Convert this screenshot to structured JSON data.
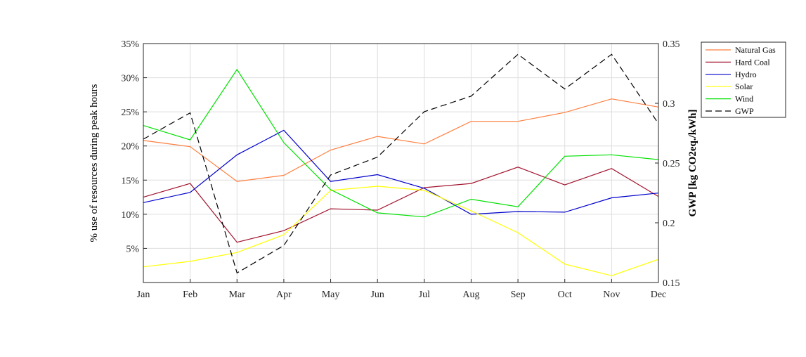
{
  "chart_data": {
    "type": "line",
    "categories": [
      "Jan",
      "Feb",
      "Mar",
      "Apr",
      "May",
      "Jun",
      "Jul",
      "Aug",
      "Sep",
      "Oct",
      "Nov",
      "Dec"
    ],
    "left_axis": {
      "label": "% use of resources during peak hours",
      "ylim": [
        0,
        35
      ],
      "ticks": [
        5,
        10,
        15,
        20,
        25,
        30,
        35
      ],
      "tick_labels": [
        "5%",
        "10%",
        "15%",
        "20%",
        "25%",
        "30%",
        "35%"
      ]
    },
    "right_axis": {
      "label": "GWP [kg CO2eq./kWh]",
      "ylim": [
        0.15,
        0.35
      ],
      "ticks": [
        0.15,
        0.2,
        0.25,
        0.3,
        0.35
      ],
      "tick_labels": [
        "0.15",
        "0.2",
        "0.25",
        "0.3",
        "0.35"
      ]
    },
    "grid": true,
    "legend_position": "top-right outside",
    "series": [
      {
        "name": "Natural Gas",
        "axis": "left",
        "color": "#ff7f3f",
        "dash": "solid",
        "values": [
          20.8,
          19.9,
          14.8,
          15.7,
          19.4,
          21.4,
          20.3,
          23.6,
          23.6,
          24.9,
          26.9,
          25.7
        ]
      },
      {
        "name": "Hard Coal",
        "axis": "left",
        "color": "#a2142f",
        "dash": "solid",
        "values": [
          12.5,
          14.5,
          5.9,
          7.6,
          10.8,
          10.6,
          13.9,
          14.5,
          16.9,
          14.3,
          16.7,
          12.6
        ]
      },
      {
        "name": "Hydro",
        "axis": "left",
        "color": "#0000cc",
        "dash": "solid",
        "values": [
          11.7,
          13.2,
          18.7,
          22.3,
          14.8,
          15.8,
          13.8,
          10.0,
          10.4,
          10.3,
          12.4,
          13.1
        ]
      },
      {
        "name": "Solar",
        "axis": "left",
        "color": "#ffff00",
        "dash": "solid",
        "values": [
          2.3,
          3.1,
          4.4,
          7.0,
          13.5,
          14.1,
          13.5,
          10.5,
          7.3,
          2.7,
          1.0,
          3.4
        ]
      },
      {
        "name": "Wind",
        "axis": "left",
        "color": "#00e000",
        "dash": "solid",
        "values": [
          23.0,
          20.9,
          31.2,
          20.5,
          13.6,
          10.2,
          9.6,
          12.2,
          11.1,
          18.5,
          18.7,
          18.0
        ]
      },
      {
        "name": "GWP",
        "axis": "right",
        "color": "#000000",
        "dash": "dashed",
        "values": [
          0.27,
          0.292,
          0.158,
          0.181,
          0.24,
          0.255,
          0.293,
          0.306,
          0.341,
          0.312,
          0.341,
          0.283
        ]
      }
    ]
  }
}
